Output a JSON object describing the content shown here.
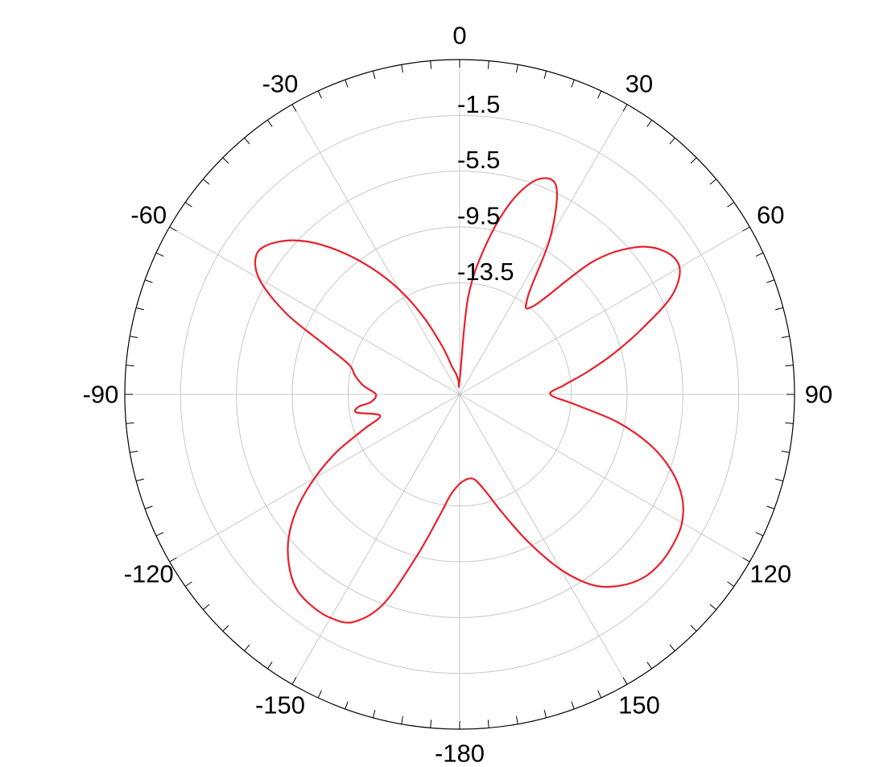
{
  "chart_data": {
    "type": "polar-line",
    "title": "",
    "angle_ticks": [
      {
        "angle": 0,
        "label": "0"
      },
      {
        "angle": 30,
        "label": "30"
      },
      {
        "angle": 60,
        "label": "60"
      },
      {
        "angle": 90,
        "label": "90"
      },
      {
        "angle": 120,
        "label": "120"
      },
      {
        "angle": 150,
        "label": "150"
      },
      {
        "angle": 180,
        "label": "-180"
      },
      {
        "angle": -150,
        "label": "-150"
      },
      {
        "angle": -120,
        "label": "-120"
      },
      {
        "angle": -90,
        "label": "-90"
      },
      {
        "angle": -60,
        "label": "-60"
      },
      {
        "angle": -30,
        "label": "-30"
      }
    ],
    "radial_ticks": [
      {
        "value": -1.5,
        "label": "-1.5"
      },
      {
        "value": -5.5,
        "label": "-5.5"
      },
      {
        "value": -9.5,
        "label": "-9.5"
      },
      {
        "value": -13.5,
        "label": "-13.5"
      }
    ],
    "radial_range": [
      -21.5,
      2.5
    ],
    "grid": true,
    "colors": {
      "series": "#e8212b",
      "grid": "#c8c8c8",
      "axis": "#000000"
    },
    "series": [
      {
        "theta": [
          -180,
          -175,
          -170,
          -165,
          -160,
          -155,
          -150,
          -145,
          -140,
          -135,
          -130,
          -125,
          -120,
          -115,
          -110,
          -105,
          -100,
          -97,
          -95,
          -90,
          -85,
          -80,
          -75,
          -70,
          -65,
          -60,
          -55,
          -50,
          -45,
          -40,
          -35,
          -30,
          -25,
          -20,
          -15,
          -10,
          -5,
          0,
          5,
          10,
          15,
          20,
          25,
          30,
          35,
          40,
          45,
          50,
          55,
          60,
          65,
          70,
          75,
          80,
          85,
          90,
          95,
          100,
          105,
          110,
          115,
          120,
          125,
          130,
          135,
          140,
          145,
          150,
          155,
          160,
          165,
          170,
          175,
          180
        ],
        "values": [
          -15.1,
          -14.3,
          -12.4,
          -9.4,
          -5.5,
          -3.5,
          -3.0,
          -3.0,
          -3.3,
          -4.2,
          -5.5,
          -7.3,
          -9.5,
          -11.8,
          -14.2,
          -15.6,
          -14.0,
          -14.2,
          -15.1,
          -15.5,
          -14.6,
          -13.9,
          -13.3,
          -11.3,
          -7.8,
          -4.9,
          -3.8,
          -4.5,
          -6.0,
          -8.1,
          -10.4,
          -12.8,
          -15.4,
          -17.8,
          -19.5,
          -20.0,
          -20.5,
          -20.5,
          -14.5,
          -10.6,
          -7.2,
          -5.1,
          -5.1,
          -8.5,
          -13.0,
          -13.2,
          -8.1,
          -5.1,
          -3.6,
          -3.3,
          -4.7,
          -7.5,
          -10.0,
          -12.2,
          -14.0,
          -15.0,
          -13.2,
          -10.0,
          -7.3,
          -5.3,
          -3.9,
          -3.1,
          -2.8,
          -2.7,
          -2.9,
          -3.6,
          -4.8,
          -7.0,
          -9.8,
          -12.4,
          -14.3,
          -15.3,
          -15.4,
          -15.1
        ]
      }
    ]
  }
}
